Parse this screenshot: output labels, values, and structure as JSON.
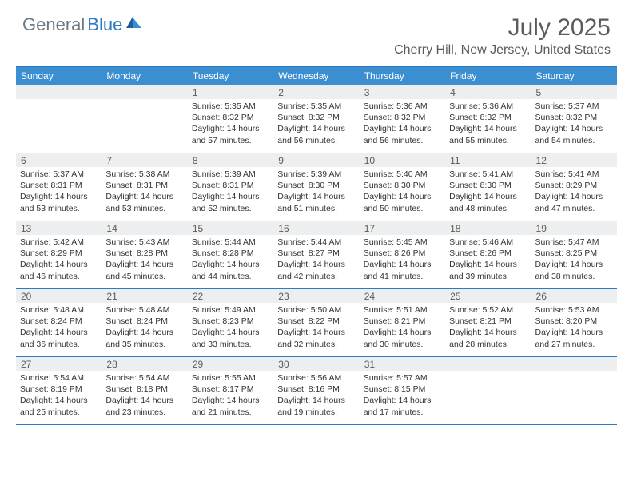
{
  "brand": {
    "word1": "General",
    "word2": "Blue"
  },
  "title": "July 2025",
  "location": "Cherry Hill, New Jersey, United States",
  "colors": {
    "accent": "#3b8ed0",
    "border": "#2c7bc0",
    "headerText": "#5b5b5b"
  },
  "dayNames": [
    "Sunday",
    "Monday",
    "Tuesday",
    "Wednesday",
    "Thursday",
    "Friday",
    "Saturday"
  ],
  "weeks": [
    [
      null,
      null,
      {
        "n": "1",
        "sr": "5:35 AM",
        "ss": "8:32 PM",
        "dl": "14 hours and 57 minutes."
      },
      {
        "n": "2",
        "sr": "5:35 AM",
        "ss": "8:32 PM",
        "dl": "14 hours and 56 minutes."
      },
      {
        "n": "3",
        "sr": "5:36 AM",
        "ss": "8:32 PM",
        "dl": "14 hours and 56 minutes."
      },
      {
        "n": "4",
        "sr": "5:36 AM",
        "ss": "8:32 PM",
        "dl": "14 hours and 55 minutes."
      },
      {
        "n": "5",
        "sr": "5:37 AM",
        "ss": "8:32 PM",
        "dl": "14 hours and 54 minutes."
      }
    ],
    [
      {
        "n": "6",
        "sr": "5:37 AM",
        "ss": "8:31 PM",
        "dl": "14 hours and 53 minutes."
      },
      {
        "n": "7",
        "sr": "5:38 AM",
        "ss": "8:31 PM",
        "dl": "14 hours and 53 minutes."
      },
      {
        "n": "8",
        "sr": "5:39 AM",
        "ss": "8:31 PM",
        "dl": "14 hours and 52 minutes."
      },
      {
        "n": "9",
        "sr": "5:39 AM",
        "ss": "8:30 PM",
        "dl": "14 hours and 51 minutes."
      },
      {
        "n": "10",
        "sr": "5:40 AM",
        "ss": "8:30 PM",
        "dl": "14 hours and 50 minutes."
      },
      {
        "n": "11",
        "sr": "5:41 AM",
        "ss": "8:30 PM",
        "dl": "14 hours and 48 minutes."
      },
      {
        "n": "12",
        "sr": "5:41 AM",
        "ss": "8:29 PM",
        "dl": "14 hours and 47 minutes."
      }
    ],
    [
      {
        "n": "13",
        "sr": "5:42 AM",
        "ss": "8:29 PM",
        "dl": "14 hours and 46 minutes."
      },
      {
        "n": "14",
        "sr": "5:43 AM",
        "ss": "8:28 PM",
        "dl": "14 hours and 45 minutes."
      },
      {
        "n": "15",
        "sr": "5:44 AM",
        "ss": "8:28 PM",
        "dl": "14 hours and 44 minutes."
      },
      {
        "n": "16",
        "sr": "5:44 AM",
        "ss": "8:27 PM",
        "dl": "14 hours and 42 minutes."
      },
      {
        "n": "17",
        "sr": "5:45 AM",
        "ss": "8:26 PM",
        "dl": "14 hours and 41 minutes."
      },
      {
        "n": "18",
        "sr": "5:46 AM",
        "ss": "8:26 PM",
        "dl": "14 hours and 39 minutes."
      },
      {
        "n": "19",
        "sr": "5:47 AM",
        "ss": "8:25 PM",
        "dl": "14 hours and 38 minutes."
      }
    ],
    [
      {
        "n": "20",
        "sr": "5:48 AM",
        "ss": "8:24 PM",
        "dl": "14 hours and 36 minutes."
      },
      {
        "n": "21",
        "sr": "5:48 AM",
        "ss": "8:24 PM",
        "dl": "14 hours and 35 minutes."
      },
      {
        "n": "22",
        "sr": "5:49 AM",
        "ss": "8:23 PM",
        "dl": "14 hours and 33 minutes."
      },
      {
        "n": "23",
        "sr": "5:50 AM",
        "ss": "8:22 PM",
        "dl": "14 hours and 32 minutes."
      },
      {
        "n": "24",
        "sr": "5:51 AM",
        "ss": "8:21 PM",
        "dl": "14 hours and 30 minutes."
      },
      {
        "n": "25",
        "sr": "5:52 AM",
        "ss": "8:21 PM",
        "dl": "14 hours and 28 minutes."
      },
      {
        "n": "26",
        "sr": "5:53 AM",
        "ss": "8:20 PM",
        "dl": "14 hours and 27 minutes."
      }
    ],
    [
      {
        "n": "27",
        "sr": "5:54 AM",
        "ss": "8:19 PM",
        "dl": "14 hours and 25 minutes."
      },
      {
        "n": "28",
        "sr": "5:54 AM",
        "ss": "8:18 PM",
        "dl": "14 hours and 23 minutes."
      },
      {
        "n": "29",
        "sr": "5:55 AM",
        "ss": "8:17 PM",
        "dl": "14 hours and 21 minutes."
      },
      {
        "n": "30",
        "sr": "5:56 AM",
        "ss": "8:16 PM",
        "dl": "14 hours and 19 minutes."
      },
      {
        "n": "31",
        "sr": "5:57 AM",
        "ss": "8:15 PM",
        "dl": "14 hours and 17 minutes."
      },
      null,
      null
    ]
  ],
  "labels": {
    "sunrise": "Sunrise: ",
    "sunset": "Sunset: ",
    "daylight": "Daylight: "
  }
}
